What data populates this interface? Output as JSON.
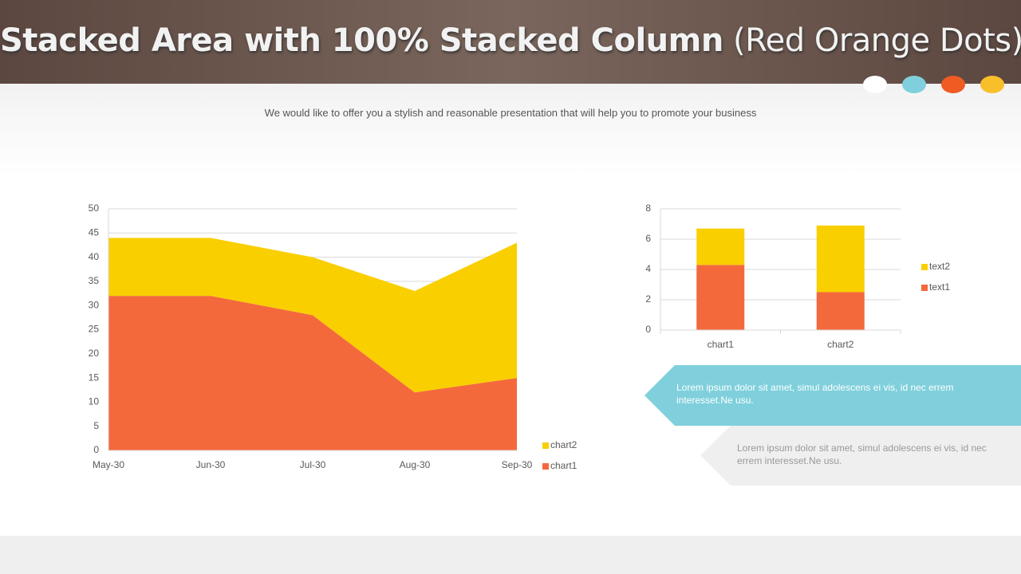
{
  "header": {
    "title_bold": "Stacked Area with 100% Stacked Column",
    "title_light": "(Red Orange Dots)",
    "subtitle": "We would like to offer you a stylish and reasonable presentation that will help you to promote your business"
  },
  "chart_data": [
    {
      "type": "area",
      "stacked": true,
      "categories": [
        "May-30",
        "Jun-30",
        "Jul-30",
        "Aug-30",
        "Sep-30"
      ],
      "series": [
        {
          "name": "chart1",
          "color": "#f4693c",
          "values": [
            32,
            32,
            28,
            12,
            15
          ]
        },
        {
          "name": "chart2",
          "color": "#f9cf00",
          "values": [
            12,
            12,
            12,
            21,
            28
          ]
        }
      ],
      "ylim": [
        0,
        50
      ],
      "yticks": [
        0,
        5,
        10,
        15,
        20,
        25,
        30,
        35,
        40,
        45,
        50
      ],
      "grid": true,
      "legend": "right"
    },
    {
      "type": "bar",
      "stacked": true,
      "categories": [
        "chart1",
        "chart2"
      ],
      "series": [
        {
          "name": "text1",
          "color": "#f4693c",
          "values": [
            4.3,
            2.5
          ]
        },
        {
          "name": "text2",
          "color": "#f9cf00",
          "values": [
            2.4,
            4.4
          ]
        }
      ],
      "ylim": [
        0,
        8
      ],
      "yticks": [
        0,
        2,
        4,
        6,
        8
      ],
      "grid": true,
      "legend": "right"
    }
  ],
  "callouts": [
    "Lorem ipsum dolor sit amet, simul adolescens ei vis, id nec errem interesset.Ne usu.",
    "Lorem ipsum dolor sit amet, simul adolescens ei vis, id nec errem interesset.Ne usu."
  ]
}
